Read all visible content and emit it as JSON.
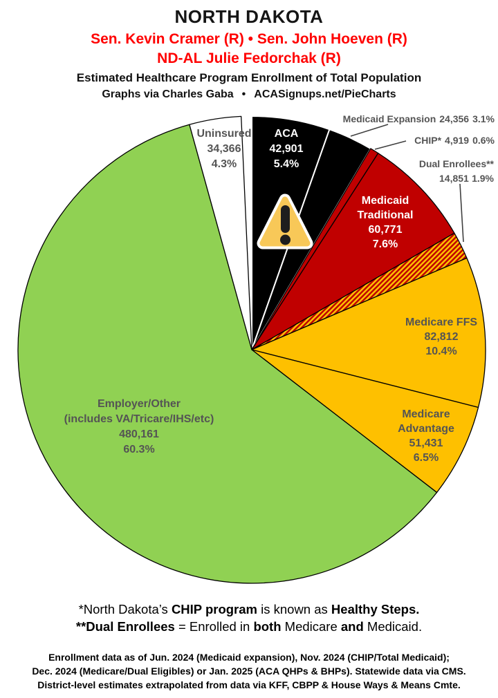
{
  "header": {
    "state": "NORTH DAKOTA",
    "senators": "Sen. Kevin Cramer (R) • Sen. John Hoeven (R)",
    "representative": "ND-AL Julie Fedorchak (R)",
    "subtitle": "Estimated Healthcare Program Enrollment of Total Population",
    "credit_left": "Graphs via Charles Gaba",
    "credit_bullet": "•",
    "credit_right": "ACASignups.net/PieCharts"
  },
  "colors": {
    "red_text": "#ff0000",
    "label_gray": "#545454",
    "leader_line": "#3f3f3f",
    "tri_fill": "#f8c858",
    "tri_ink": "#1e1e1e"
  },
  "icons": {
    "warning": "exclamation-triangle"
  },
  "chart_data": {
    "type": "pie",
    "title": "Estimated Healthcare Program Enrollment of Total Population",
    "start_angle_deg": 0,
    "direction": "clockwise",
    "hatch_colors": [
      "#C00000",
      "#FEC000"
    ],
    "slices": [
      {
        "name": "ACA",
        "value": "42,901",
        "pct": 5.4,
        "pct_label": "5.4%",
        "color": "#000000",
        "border": "#FFFFFF",
        "label_placement": "inside",
        "label_color": "white"
      },
      {
        "name": "Medicaid Expansion",
        "value": "24,356",
        "pct": 3.1,
        "pct_label": "3.1%",
        "color": "#000000",
        "border": "#FFFFFF",
        "label_placement": "outside"
      },
      {
        "name": "CHIP*",
        "value": "4,919",
        "pct": 0.6,
        "pct_label": "0.6%",
        "color": "#C00000",
        "border": "#000000",
        "label_placement": "outside"
      },
      {
        "name": "Medicaid Traditional",
        "name_lines": [
          "Medicaid",
          "Traditional"
        ],
        "value": "60,771",
        "pct": 7.6,
        "pct_label": "7.6%",
        "color": "#C00000",
        "border": "#000000",
        "label_placement": "inside",
        "label_color": "white"
      },
      {
        "name": "Dual Enrollees**",
        "value": "14,851",
        "pct": 1.9,
        "pct_label": "1.9%",
        "color": "hatch-red-yellow",
        "border": "#000000",
        "label_placement": "outside"
      },
      {
        "name": "Medicare FFS",
        "value": "82,812",
        "pct": 10.4,
        "pct_label": "10.4%",
        "color": "#FEC000",
        "border": "#000000",
        "label_placement": "inside",
        "label_color": "gray"
      },
      {
        "name": "Medicare Advantage",
        "name_lines": [
          "Medicare",
          "Advantage"
        ],
        "value": "51,431",
        "pct": 6.5,
        "pct_label": "6.5%",
        "color": "#FEC000",
        "border": "#000000",
        "label_placement": "inside",
        "label_color": "gray"
      },
      {
        "name": "Employer/Other",
        "name_lines": [
          "Employer/Other",
          "(includes VA/Tricare/IHS/etc)"
        ],
        "value": "480,161",
        "pct": 60.3,
        "pct_label": "60.3%",
        "color": "#90D153",
        "border": "#000000",
        "label_placement": "inside",
        "label_color": "gray"
      },
      {
        "name": "Uninsured",
        "value": "34,366",
        "pct": 4.3,
        "pct_label": "4.3%",
        "color": "#FFFFFF",
        "border": "#000000",
        "label_placement": "inside",
        "label_color": "gray"
      }
    ]
  },
  "footnotes": {
    "line1": {
      "seg1": "*North Dakota’s ",
      "seg2": "CHIP program",
      "seg3": " is known as ",
      "seg4": "Healthy Steps."
    },
    "line2": {
      "seg1": "**Dual Enrollees",
      "seg2": " = Enrolled in ",
      "seg3": "both",
      "seg4": " Medicare ",
      "seg5": "and",
      "seg6": " Medicaid."
    }
  },
  "source": {
    "line1": "Enrollment data as of Jun. 2024 (Medicaid expansion), Nov. 2024 (CHIP/Total Medicaid);",
    "line2": "Dec. 2024 (Medicare/Dual Eligibles) or Jan. 2025 (ACA QHPs & BHPs). Statewide data via CMS.",
    "line3": "District-level estimates extrapolated from data via KFF, CBPP & House Ways & Means Cmte."
  }
}
